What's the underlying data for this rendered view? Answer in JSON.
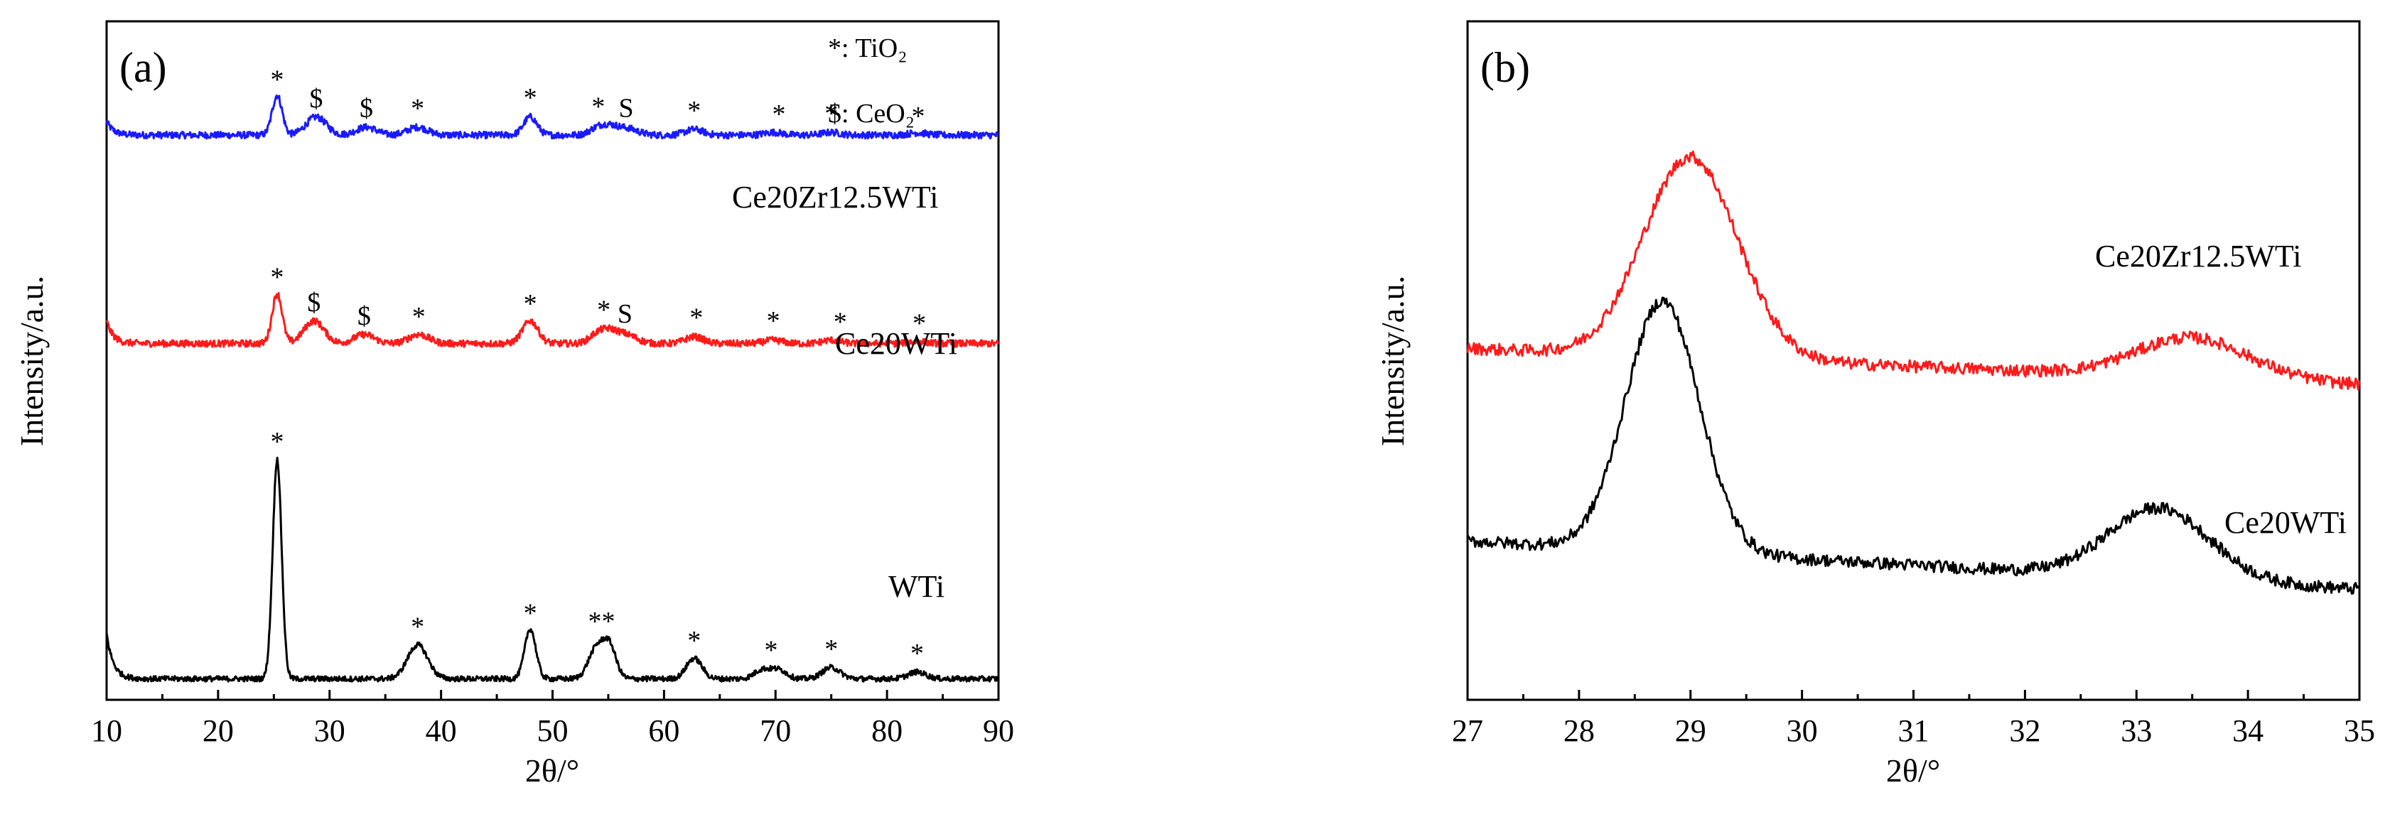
{
  "chart_data": [
    {
      "type": "line",
      "panel_label": "(a)",
      "xlabel": "2θ/°",
      "ylabel": "Intensity/a.u.",
      "xlim": [
        10,
        90
      ],
      "xticks": [
        "10",
        "20",
        "30",
        "40",
        "50",
        "60",
        "70",
        "80",
        "90"
      ],
      "legend": [
        {
          "symbol": "*",
          "label": "TiO₂"
        },
        {
          "symbol": "$",
          "label": "CeO₂"
        }
      ],
      "series": [
        {
          "name": "Ce20Zr12.5WTi",
          "color": "#1a1aff",
          "baseline": 240,
          "noise": 1.5,
          "start_rise": 6,
          "peaks": [
            {
              "x": 25.3,
              "h": 17.5,
              "w": 0.45
            },
            {
              "x": 28.8,
              "h": 8,
              "w": 0.9
            },
            {
              "x": 33.3,
              "h": 3.5,
              "w": 0.9
            },
            {
              "x": 37.9,
              "h": 3.5,
              "w": 0.9
            },
            {
              "x": 48.0,
              "h": 8,
              "w": 0.6
            },
            {
              "x": 54.0,
              "h": 3,
              "w": 0.7
            },
            {
              "x": 55.1,
              "h": 3,
              "w": 0.7
            },
            {
              "x": 56.6,
              "h": 3,
              "w": 1.0
            },
            {
              "x": 62.7,
              "h": 2.5,
              "w": 0.8
            },
            {
              "x": 69.8,
              "h": 1.2,
              "w": 0.8
            },
            {
              "x": 75.0,
              "h": 1.2,
              "w": 0.8
            },
            {
              "x": 82.7,
              "h": 1,
              "w": 0.8
            }
          ],
          "markers": [
            {
              "x": 25.3,
              "symbol": "*"
            },
            {
              "x": 28.8,
              "symbol": "$"
            },
            {
              "x": 33.3,
              "symbol": "$"
            },
            {
              "x": 37.9,
              "symbol": "*"
            },
            {
              "x": 48.0,
              "symbol": "*"
            },
            {
              "x": 54.1,
              "symbol": "*"
            },
            {
              "x": 56.6,
              "symbol": "S"
            },
            {
              "x": 62.7,
              "symbol": "*"
            },
            {
              "x": 70.3,
              "symbol": "*"
            },
            {
              "x": 75.0,
              "symbol": "*"
            },
            {
              "x": 82.8,
              "symbol": "*"
            }
          ]
        },
        {
          "name": "Ce20WTi",
          "color": "#ff1a1a",
          "baseline": 148,
          "noise": 1.5,
          "start_rise": 10,
          "peaks": [
            {
              "x": 25.3,
              "h": 22,
              "w": 0.45
            },
            {
              "x": 28.6,
              "h": 10,
              "w": 0.9
            },
            {
              "x": 33.1,
              "h": 4,
              "w": 0.9
            },
            {
              "x": 38.0,
              "h": 4,
              "w": 0.9
            },
            {
              "x": 48.0,
              "h": 10,
              "w": 0.7
            },
            {
              "x": 54.0,
              "h": 4,
              "w": 0.7
            },
            {
              "x": 55.1,
              "h": 4,
              "w": 0.7
            },
            {
              "x": 56.5,
              "h": 4,
              "w": 1.0
            },
            {
              "x": 62.7,
              "h": 3,
              "w": 0.8
            },
            {
              "x": 69.8,
              "h": 1.5,
              "w": 0.8
            },
            {
              "x": 75.0,
              "h": 1.5,
              "w": 0.8
            },
            {
              "x": 82.7,
              "h": 1,
              "w": 0.8
            }
          ],
          "markers": [
            {
              "x": 25.3,
              "symbol": "*"
            },
            {
              "x": 28.6,
              "symbol": "$"
            },
            {
              "x": 33.1,
              "symbol": "$"
            },
            {
              "x": 38.0,
              "symbol": "*"
            },
            {
              "x": 48.0,
              "symbol": "*"
            },
            {
              "x": 54.6,
              "symbol": "*"
            },
            {
              "x": 56.5,
              "symbol": "S"
            },
            {
              "x": 62.9,
              "symbol": "*"
            },
            {
              "x": 69.8,
              "symbol": "*"
            },
            {
              "x": 75.8,
              "symbol": "*"
            },
            {
              "x": 82.9,
              "symbol": "*"
            }
          ]
        },
        {
          "name": "WTi",
          "color": "#000000",
          "baseline": 0,
          "noise": 1.2,
          "start_rise": 20,
          "peaks": [
            {
              "x": 25.3,
              "h": 97,
              "w": 0.4
            },
            {
              "x": 37.9,
              "h": 15,
              "w": 0.9
            },
            {
              "x": 48.0,
              "h": 22,
              "w": 0.5
            },
            {
              "x": 53.9,
              "h": 13,
              "w": 0.7
            },
            {
              "x": 55.1,
              "h": 14,
              "w": 0.6
            },
            {
              "x": 62.7,
              "h": 9,
              "w": 0.7
            },
            {
              "x": 68.8,
              "h": 4,
              "w": 0.7
            },
            {
              "x": 70.3,
              "h": 4,
              "w": 0.7
            },
            {
              "x": 75.0,
              "h": 5,
              "w": 0.8
            },
            {
              "x": 82.7,
              "h": 3,
              "w": 0.8
            }
          ],
          "markers": [
            {
              "x": 25.3,
              "symbol": "*"
            },
            {
              "x": 37.9,
              "symbol": "*"
            },
            {
              "x": 48.0,
              "symbol": "*"
            },
            {
              "x": 54.4,
              "symbol": "**"
            },
            {
              "x": 62.7,
              "symbol": "*"
            },
            {
              "x": 69.6,
              "symbol": "*"
            },
            {
              "x": 75.0,
              "symbol": "*"
            },
            {
              "x": 82.7,
              "symbol": "*"
            }
          ]
        }
      ]
    },
    {
      "type": "line",
      "panel_label": "(b)",
      "xlabel": "2θ/°",
      "ylabel": "Intensity/a.u.",
      "xlim": [
        27,
        35
      ],
      "xticks": [
        "27",
        "28",
        "29",
        "30",
        "31",
        "32",
        "33",
        "34",
        "35"
      ],
      "series": [
        {
          "name": "Ce20Zr12.5WTi",
          "color": "#ff1a1a",
          "baseline": 100,
          "baseline_start": 38,
          "baseline_end": 20,
          "noise": 3,
          "peaks": [
            {
              "x": 29.0,
              "h": 100,
              "w": 0.42
            },
            {
              "x": 33.5,
              "h": 20,
              "w": 0.5
            }
          ]
        },
        {
          "name": "Ce20WTi",
          "color": "#000000",
          "baseline": 0,
          "baseline_start": 42,
          "baseline_end": 18,
          "noise": 3,
          "peaks": [
            {
              "x": 28.75,
              "h": 125,
              "w": 0.33
            },
            {
              "x": 33.2,
              "h": 35,
              "w": 0.45
            }
          ]
        }
      ]
    }
  ]
}
